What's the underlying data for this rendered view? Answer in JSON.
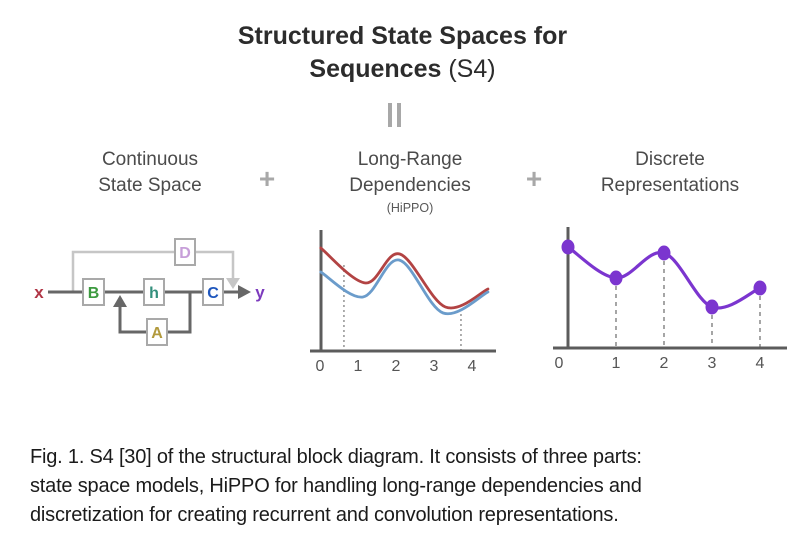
{
  "title": {
    "line1": "Structured State Spaces for",
    "line2_bold": "Sequences",
    "line2_suffix": "(S4)"
  },
  "connectors": {
    "plus": "+"
  },
  "panels": [
    {
      "heading_line1": "Continuous",
      "heading_line2": "State Space",
      "subheading": ""
    },
    {
      "heading_line1": "Long-Range",
      "heading_line2": "Dependencies",
      "subheading": "(HiPPO)"
    },
    {
      "heading_line1": "Discrete",
      "heading_line2": "Representations",
      "subheading": ""
    }
  ],
  "block_diagram": {
    "input": {
      "label": "x",
      "color": "#b03545"
    },
    "output": {
      "label": "y",
      "color": "#7c3abd"
    },
    "blocks": [
      {
        "label": "B",
        "color": "#3c9a3f"
      },
      {
        "label": "h",
        "color": "#338f7c"
      },
      {
        "label": "C",
        "color": "#1e56bd"
      },
      {
        "label": "A",
        "color": "#b29a3d"
      },
      {
        "label": "D",
        "color": "#c79fd9"
      }
    ]
  },
  "chart_data": [
    {
      "type": "line",
      "title": "Long-Range Dependencies",
      "subtitle": "(HiPPO)",
      "x_ticks": [
        0,
        1,
        2,
        3,
        4
      ],
      "xlim": [
        0,
        4.5
      ],
      "ylim": [
        0,
        1.2
      ],
      "grid": false,
      "legend": "none",
      "series": [
        {
          "name": "red-signal",
          "color": "#b24343",
          "points": [
            [
              0.02,
              1.03
            ],
            [
              1.2,
              0.68
            ],
            [
              2.1,
              0.97
            ],
            [
              3.3,
              0.44
            ],
            [
              4.42,
              0.62
            ]
          ]
        },
        {
          "name": "blue-signal",
          "color": "#6b9ccb",
          "points": [
            [
              0.02,
              0.79
            ],
            [
              1.13,
              0.54
            ],
            [
              2.08,
              0.91
            ],
            [
              3.24,
              0.38
            ],
            [
              4.42,
              0.59
            ]
          ]
        }
      ],
      "dotted_markers": [
        {
          "x": 0.63,
          "y_top": 0.86
        },
        {
          "x": 3.71,
          "y_top": 0.42
        }
      ]
    },
    {
      "type": "scatter",
      "title": "Discrete Representations",
      "x_ticks": [
        0,
        1,
        2,
        3,
        4
      ],
      "xlim": [
        0,
        4.4
      ],
      "ylim": [
        0,
        1.2
      ],
      "grid": false,
      "legend": "none",
      "color": "#7b35cf",
      "x": [
        0,
        1,
        2,
        3,
        4
      ],
      "values": [
        1.01,
        0.7,
        0.95,
        0.41,
        0.6
      ],
      "dashed_droplines_at": [
        1,
        2,
        3,
        4
      ]
    }
  ],
  "colors": {
    "axis": "#5c5c5c",
    "tick_text": "#555555",
    "dotted_marker": "#999999",
    "dashed_dropline": "#8f8f8f"
  },
  "caption": {
    "lines": [
      "Fig. 1. S4 [30] of the structural block diagram. It consists of three parts:",
      "state space models, HiPPO for handling long-range dependencies and",
      "discretization for creating recurrent and convolution representations."
    ]
  }
}
